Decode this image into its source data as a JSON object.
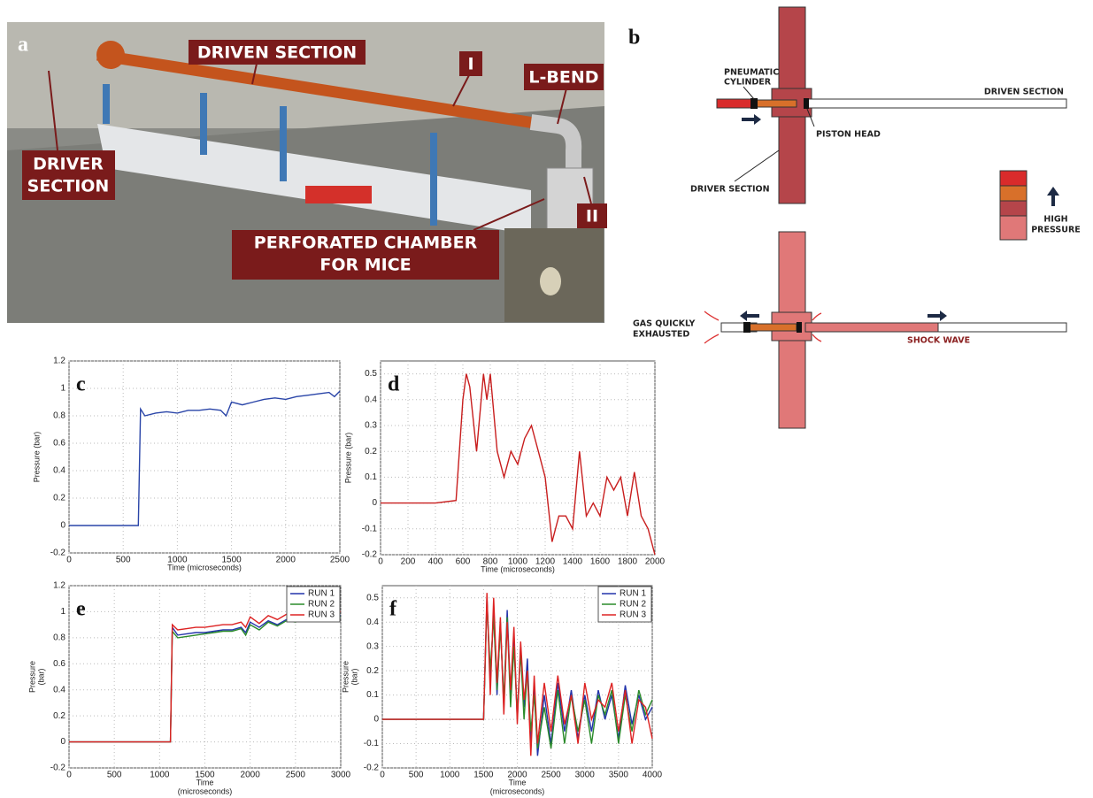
{
  "photo": {
    "panel": "a",
    "driven_section": "DRIVEN SECTION",
    "l_bend": "L-BEND",
    "marker_1": "I",
    "marker_2": "II",
    "driver_section": [
      "DRIVER",
      "SECTION"
    ],
    "chamber": [
      "PERFORATED CHAMBER",
      "FOR MICE"
    ]
  },
  "diagram": {
    "panel": "b",
    "pneumatic_cylinder": [
      "PNEUMATIC",
      "CYLINDER"
    ],
    "driven_section": "DRIVEN SECTION",
    "piston_head": "PISTON HEAD",
    "driver_section": "DRIVER SECTION",
    "high_pressure": [
      "HIGH",
      "PRESSURE"
    ],
    "gas_exhausted": [
      "GAS QUICKLY",
      "EXHAUSTED"
    ],
    "shock_wave": "SHOCK WAVE"
  },
  "chart_data": [
    {
      "type": "line",
      "panel": "c",
      "xlabel": "Time (microseconds)",
      "ylabel": "Pressure (bar)",
      "grid": true,
      "color": "#2a45a8",
      "x": [
        0,
        500,
        640,
        660,
        700,
        800,
        900,
        1000,
        1100,
        1200,
        1300,
        1400,
        1450,
        1500,
        1600,
        1700,
        1800,
        1900,
        2000,
        2100,
        2200,
        2300,
        2400,
        2450,
        2500
      ],
      "values": [
        0,
        0,
        0,
        0.85,
        0.8,
        0.82,
        0.83,
        0.82,
        0.84,
        0.84,
        0.85,
        0.84,
        0.8,
        0.9,
        0.88,
        0.9,
        0.92,
        0.93,
        0.92,
        0.94,
        0.95,
        0.96,
        0.97,
        0.94,
        0.98
      ],
      "xlim": [
        0,
        2500
      ],
      "xticks": [
        0,
        500,
        1000,
        1500,
        2000,
        2500
      ],
      "ylim": [
        -0.2,
        1.2
      ],
      "yticks": [
        -0.2,
        0,
        0.2,
        0.4,
        0.6,
        0.8,
        1,
        1.2
      ]
    },
    {
      "type": "line",
      "panel": "d",
      "xlabel": "Time (microseconds)",
      "ylabel": "Pressure (bar)",
      "grid": true,
      "color": "#c81e1e",
      "x": [
        0,
        200,
        400,
        550,
        600,
        625,
        650,
        700,
        750,
        775,
        800,
        850,
        900,
        950,
        1000,
        1050,
        1100,
        1150,
        1200,
        1250,
        1300,
        1350,
        1400,
        1450,
        1500,
        1550,
        1600,
        1650,
        1700,
        1750,
        1800,
        1850,
        1900,
        1950,
        2000
      ],
      "values": [
        0,
        0,
        0,
        0.01,
        0.4,
        0.5,
        0.45,
        0.2,
        0.5,
        0.4,
        0.5,
        0.2,
        0.1,
        0.2,
        0.15,
        0.25,
        0.3,
        0.2,
        0.1,
        -0.15,
        -0.05,
        -0.05,
        -0.1,
        0.2,
        -0.05,
        0,
        -0.05,
        0.1,
        0.05,
        0.1,
        -0.05,
        0.12,
        -0.05,
        -0.1,
        -0.2
      ],
      "xlim": [
        0,
        2000
      ],
      "xticks": [
        0,
        200,
        400,
        600,
        800,
        1000,
        1200,
        1400,
        1600,
        1800,
        2000
      ],
      "ylim": [
        -0.2,
        0.55
      ],
      "yticks": [
        -0.2,
        -0.1,
        0,
        0.1,
        0.2,
        0.3,
        0.4,
        0.5
      ]
    },
    {
      "type": "line",
      "panel": "e",
      "xlabel": [
        "Time",
        "(microseconds)"
      ],
      "ylabel": [
        "Pressure",
        "(bar)"
      ],
      "grid": true,
      "legend": "upper right",
      "x": [
        0,
        500,
        1000,
        1120,
        1140,
        1200,
        1300,
        1400,
        1500,
        1600,
        1700,
        1800,
        1900,
        1950,
        2000,
        2100,
        2200,
        2300,
        2400,
        2500,
        2600,
        2700,
        2800,
        2900,
        3000
      ],
      "series": [
        {
          "name": "RUN 1",
          "color": "#2233aa",
          "values": [
            0,
            0,
            0,
            0,
            0.88,
            0.82,
            0.83,
            0.84,
            0.84,
            0.85,
            0.86,
            0.86,
            0.88,
            0.84,
            0.92,
            0.88,
            0.93,
            0.9,
            0.94,
            0.93,
            0.95,
            0.96,
            0.95,
            0.97,
            0.97
          ]
        },
        {
          "name": "RUN 2",
          "color": "#2a8a2a",
          "values": [
            0,
            0,
            0,
            0,
            0.85,
            0.8,
            0.81,
            0.82,
            0.83,
            0.84,
            0.85,
            0.85,
            0.87,
            0.82,
            0.9,
            0.86,
            0.92,
            0.89,
            0.93,
            0.92,
            0.94,
            0.95,
            0.94,
            0.96,
            0.96
          ]
        },
        {
          "name": "RUN 3",
          "color": "#dd2222",
          "values": [
            0,
            0,
            0,
            0,
            0.9,
            0.86,
            0.87,
            0.88,
            0.88,
            0.89,
            0.9,
            0.9,
            0.92,
            0.88,
            0.96,
            0.91,
            0.97,
            0.94,
            0.98,
            0.97,
            0.99,
            1.0,
            0.99,
            1.01,
            1.0
          ]
        }
      ],
      "xlim": [
        0,
        3000
      ],
      "xticks": [
        0,
        500,
        1000,
        1500,
        2000,
        2500,
        3000
      ],
      "ylim": [
        -0.2,
        1.2
      ],
      "yticks": [
        -0.2,
        0,
        0.2,
        0.4,
        0.6,
        0.8,
        1,
        1.2
      ]
    },
    {
      "type": "line",
      "panel": "f",
      "xlabel": [
        "Time",
        "(microseconds)"
      ],
      "ylabel": [
        "Pressure",
        "(bar)"
      ],
      "grid": true,
      "legend": "upper right",
      "x": [
        0,
        500,
        1000,
        1500,
        1550,
        1600,
        1650,
        1700,
        1750,
        1800,
        1850,
        1900,
        1950,
        2000,
        2050,
        2100,
        2150,
        2200,
        2250,
        2300,
        2400,
        2500,
        2600,
        2700,
        2800,
        2900,
        3000,
        3100,
        3200,
        3300,
        3400,
        3500,
        3600,
        3700,
        3800,
        3900,
        4000
      ],
      "series": [
        {
          "name": "RUN 1",
          "color": "#2233aa",
          "values": [
            0,
            0,
            0,
            0,
            0.5,
            0.15,
            0.45,
            0.1,
            0.4,
            0.05,
            0.45,
            0.1,
            0.35,
            0,
            0.3,
            0.05,
            0.25,
            -0.1,
            0.15,
            -0.15,
            0.1,
            -0.1,
            0.15,
            -0.05,
            0.12,
            -0.08,
            0.1,
            -0.05,
            0.12,
            0,
            0.1,
            -0.08,
            0.14,
            -0.02,
            0.1,
            0,
            0.05
          ]
        },
        {
          "name": "RUN 2",
          "color": "#2a8a2a",
          "values": [
            0,
            0,
            0,
            0,
            0.48,
            0.2,
            0.42,
            0.12,
            0.38,
            0.08,
            0.42,
            0.05,
            0.3,
            0.02,
            0.28,
            0,
            0.2,
            -0.05,
            0.1,
            -0.12,
            0.05,
            -0.12,
            0.12,
            -0.1,
            0.1,
            -0.05,
            0.08,
            -0.1,
            0.1,
            0.02,
            0.12,
            -0.1,
            0.1,
            -0.05,
            0.12,
            0.02,
            0.08
          ]
        },
        {
          "name": "RUN 3",
          "color": "#dd2222",
          "values": [
            0,
            0,
            0,
            0,
            0.52,
            0.1,
            0.5,
            0.15,
            0.42,
            0.02,
            0.4,
            0.12,
            0.38,
            -0.02,
            0.32,
            0.08,
            0.2,
            -0.15,
            0.18,
            -0.1,
            0.15,
            -0.05,
            0.18,
            -0.02,
            0.1,
            -0.1,
            0.15,
            0,
            0.08,
            0.05,
            0.15,
            -0.05,
            0.12,
            -0.1,
            0.08,
            0.05,
            -0.08
          ]
        }
      ],
      "xlim": [
        0,
        4000
      ],
      "xticks": [
        0,
        500,
        1000,
        1500,
        2000,
        2500,
        3000,
        3500,
        4000
      ],
      "ylim": [
        -0.2,
        0.55
      ],
      "yticks": [
        -0.2,
        -0.1,
        0,
        0.1,
        0.2,
        0.3,
        0.4,
        0.5
      ]
    }
  ]
}
